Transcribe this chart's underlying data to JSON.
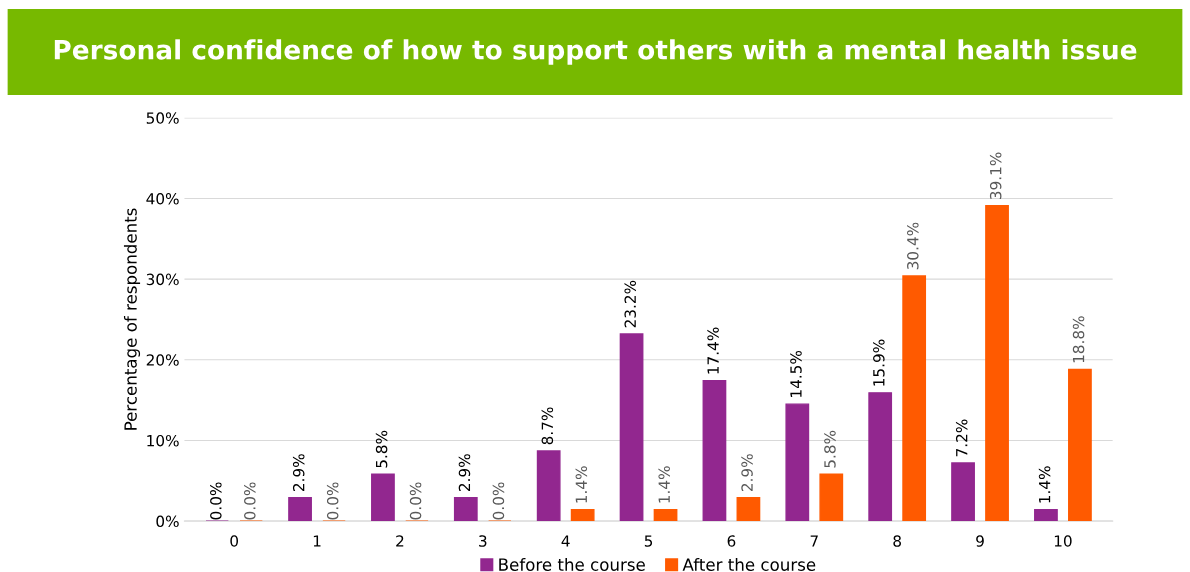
{
  "chart_data": {
    "type": "bar",
    "title": "Personal confidence of how to support others with a mental health issue",
    "ylabel": "Percentage of respondents",
    "categories": [
      "0",
      "1",
      "2",
      "3",
      "4",
      "5",
      "6",
      "7",
      "8",
      "9",
      "10"
    ],
    "series": [
      {
        "name": "Before the course",
        "color": "#92278f",
        "values": [
          0.0,
          2.9,
          5.8,
          2.9,
          8.7,
          23.2,
          17.4,
          14.5,
          15.9,
          7.2,
          1.4
        ],
        "value_labels": [
          "0.0%",
          "2.9%",
          "5.8%",
          "2.9%",
          "8.7%",
          "23.2%",
          "17.4%",
          "14.5%",
          "15.9%",
          "7.2%",
          "1.4%"
        ]
      },
      {
        "name": "After the course",
        "color": "#ff5a00",
        "values": [
          0.0,
          0.0,
          0.0,
          0.0,
          1.4,
          1.4,
          2.9,
          5.8,
          30.4,
          39.1,
          18.8
        ],
        "value_labels": [
          "0.0%",
          "0.0%",
          "0.0%",
          "0.0%",
          "1.4%",
          "1.4%",
          "2.9%",
          "5.8%",
          "30.4%",
          "39.1%",
          "18.8%"
        ]
      }
    ],
    "ylim": [
      0,
      50
    ],
    "yticks": [
      {
        "value": 0,
        "label": "0%"
      },
      {
        "value": 10,
        "label": "10%"
      },
      {
        "value": 20,
        "label": "20%"
      },
      {
        "value": 30,
        "label": "30%"
      },
      {
        "value": 40,
        "label": "40%"
      },
      {
        "value": 50,
        "label": "50%"
      }
    ],
    "grid": "y",
    "legend": "bottom"
  }
}
